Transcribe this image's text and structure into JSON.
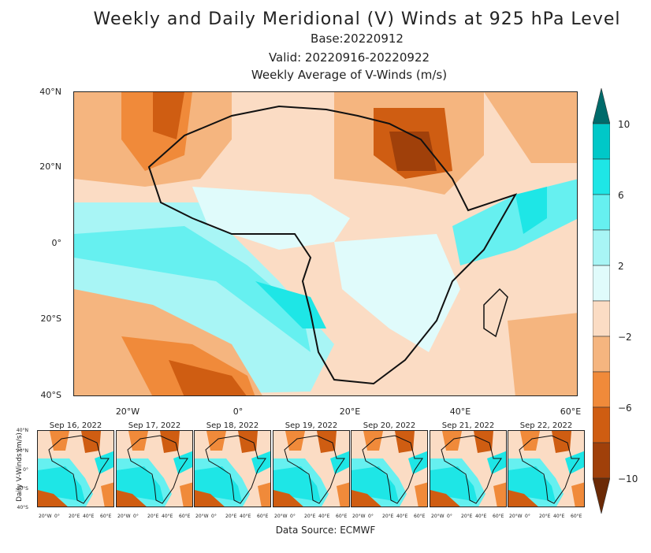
{
  "header": {
    "title": "Weekly and Daily Meridional (V) Winds at 925 hPa Level",
    "base": "Base:20220912",
    "valid": "Valid: 20220916-20220922",
    "subtitle": "Weekly Average of V-Winds (m/s)"
  },
  "main_map": {
    "y_ticks": [
      "40°N",
      "20°N",
      "0°",
      "20°S",
      "40°S"
    ],
    "x_ticks": [
      "20°W",
      "0°",
      "20°E",
      "40°E",
      "60°E"
    ]
  },
  "colorbar": {
    "labels": [
      "10",
      "6",
      "2",
      "−2",
      "−6",
      "−10"
    ],
    "colors": [
      "#006b6b",
      "#00c8c8",
      "#1ee6e6",
      "#66f0f0",
      "#a8f5f5",
      "#e0fbfb",
      "#fbdcc4",
      "#f5b57f",
      "#f08a3a",
      "#cf5d12",
      "#a0400a",
      "#6b2a06"
    ]
  },
  "daily": {
    "axis_label": "Daily V-Winds (m/s)",
    "panels": [
      {
        "title": "Sep 16, 2022"
      },
      {
        "title": "Sep 17, 2022"
      },
      {
        "title": "Sep 18, 2022"
      },
      {
        "title": "Sep 19, 2022"
      },
      {
        "title": "Sep 20, 2022"
      },
      {
        "title": "Sep 21, 2022"
      },
      {
        "title": "Sep 22, 2022"
      }
    ],
    "y_ticks": [
      "40°N",
      "20°N",
      "0°",
      "20°S",
      "40°S"
    ],
    "x_ticks": [
      "20°W",
      "0°",
      "20°E",
      "40°E",
      "60°E"
    ]
  },
  "footer": {
    "source": "Data Source: ECMWF"
  }
}
